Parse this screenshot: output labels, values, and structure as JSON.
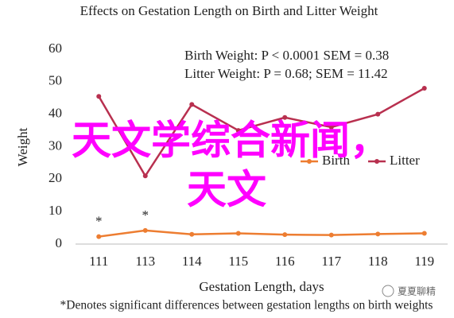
{
  "chart_data": {
    "type": "line",
    "title": "Effects on Gestation Length on Birth and Litter Weight",
    "x_label": "Gestation Length, days",
    "y_label": "Weight",
    "annotations": [
      "Birth Weight: P < 0.0001 SEM = 0.38",
      "Litter Weight: P = 0.68; SEM = 11.42"
    ],
    "significance_marks": [
      "*",
      "*"
    ],
    "footnote": "*Denotes significant differences between gestation lengths on birth weights",
    "categories": [
      "111",
      "113",
      "114",
      "115",
      "116",
      "117",
      "118",
      "119"
    ],
    "series": [
      {
        "name": "Birth",
        "color": "#ed7d31",
        "values": [
          2.3,
          4.2,
          3.0,
          3.3,
          2.9,
          2.8,
          3.1,
          3.3
        ]
      },
      {
        "name": "Litter",
        "color": "#b8304f",
        "values": [
          45.5,
          21,
          43,
          35,
          39,
          36,
          40,
          48
        ]
      }
    ],
    "ylim": [
      0,
      60
    ],
    "yticks": [
      0,
      10,
      20,
      30,
      40,
      50,
      60
    ],
    "grid": false,
    "legend": "lower-right"
  },
  "overlay": {
    "line1": "天文学综合新闻，",
    "line2": "天文",
    "color": "#ff00ff"
  },
  "watermark": "夏夏聊精"
}
